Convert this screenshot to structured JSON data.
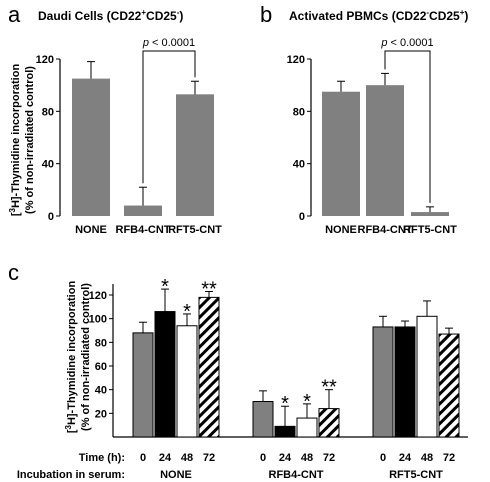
{
  "figure": {
    "background": "#ffffff",
    "bar_gray": "#808080",
    "bar_black": "#000000",
    "bar_white": "#ffffff"
  },
  "chart_data": [
    {
      "id": "a",
      "panel_letter": "a",
      "type": "bar",
      "title_main": "Daudi Cells (CD22",
      "title_sup1": "+",
      "title_mid": "CD25",
      "title_sup2": "-",
      "title_end": ")",
      "categories": [
        "NONE",
        "RFB4-CNT",
        "RFT5-CNT"
      ],
      "values": [
        105,
        8,
        93
      ],
      "errors": [
        13,
        14,
        10
      ],
      "ylim": [
        0,
        120
      ],
      "yticks": [
        0,
        40,
        80,
        120
      ],
      "significance": {
        "label_p": "p",
        "label_rest": " < 0.0001",
        "from": 1,
        "to": 2
      },
      "ylabel_line1_pre": "[",
      "ylabel_line1_sup": "3",
      "ylabel_line1_post": "H]-Thymidine incorporation",
      "ylabel_line2": "(% of non-irradiated control)"
    },
    {
      "id": "b",
      "panel_letter": "b",
      "type": "bar",
      "title_main": "Activated PBMCs (CD22",
      "title_sup1": "-",
      "title_mid": "CD25",
      "title_sup2": "+",
      "title_end": ")",
      "categories": [
        "NONE",
        "RFB4-CNT",
        "RFT5-CNT"
      ],
      "values": [
        95,
        100,
        3
      ],
      "errors": [
        8,
        9,
        4
      ],
      "ylim": [
        0,
        120
      ],
      "yticks": [
        0,
        40,
        80,
        120
      ],
      "significance": {
        "label_p": "p",
        "label_rest": " < 0.0001",
        "from": 1,
        "to": 2
      }
    },
    {
      "id": "c",
      "panel_letter": "c",
      "type": "bar",
      "groups": [
        "NONE",
        "RFB4-CNT",
        "RFT5-CNT"
      ],
      "time_labels": [
        "0",
        "24",
        "48",
        "72"
      ],
      "series": [
        {
          "values": [
            88,
            30,
            93
          ],
          "errors": [
            9,
            9,
            9
          ],
          "fill": "gray"
        },
        {
          "values": [
            106,
            9,
            93
          ],
          "errors": [
            19,
            17,
            5
          ],
          "fill": "black"
        },
        {
          "values": [
            94,
            16,
            102
          ],
          "errors": [
            10,
            12,
            13
          ],
          "fill": "white"
        },
        {
          "values": [
            118,
            24,
            87
          ],
          "errors": [
            5,
            16,
            5
          ],
          "fill": "hatch"
        }
      ],
      "stars": [
        [
          "",
          "",
          ""
        ],
        [
          "*",
          "*",
          ""
        ],
        [
          "*",
          "*",
          ""
        ],
        [
          "**",
          "**",
          ""
        ]
      ],
      "ylim": [
        0,
        120
      ],
      "yticks": [
        20,
        40,
        60,
        80,
        100,
        120
      ],
      "ylabel_line1_pre": "[",
      "ylabel_line1_sup": "3",
      "ylabel_line1_post": "H]-Thymidine incorporation",
      "ylabel_line2": "(% of non-irradiated control)",
      "time_row_label": "Time (h):",
      "serum_row_label": "Incubation in serum:"
    }
  ]
}
